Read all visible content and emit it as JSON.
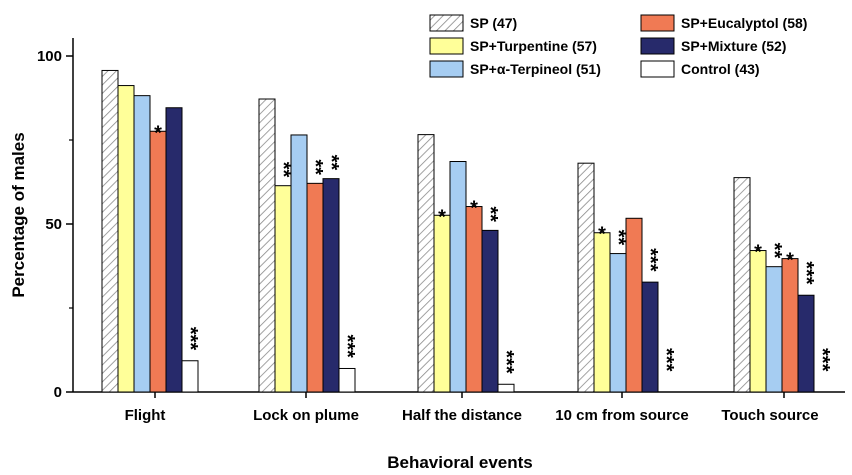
{
  "chart_data": {
    "type": "bar",
    "title": "",
    "xlabel": "Behavioral events",
    "ylabel": "Percentage of males",
    "ylim": [
      0,
      100
    ],
    "yticks": [
      "0",
      "50",
      "100"
    ],
    "legend_position": "top-right",
    "categories": [
      "Flight",
      "Lock on plume",
      "Half the distance",
      "10 cm from source",
      "Touch source"
    ],
    "series": [
      {
        "name": "SP (47)",
        "color": "#ffffff",
        "pattern": "hatch",
        "values": [
          95.7,
          87.2,
          76.6,
          68.1,
          63.8
        ],
        "sig": [
          "",
          "",
          "",
          "",
          ""
        ]
      },
      {
        "name": "SP+Turpentine (57)",
        "color": "#ffff99",
        "pattern": "solid",
        "values": [
          91.2,
          61.4,
          52.6,
          47.4,
          42.1
        ],
        "sig": [
          "",
          "**",
          "*",
          "*",
          "*"
        ]
      },
      {
        "name": "SP+α-Terpineol (51)",
        "color": "#a6cdf2",
        "pattern": "solid",
        "values": [
          88.2,
          76.5,
          68.6,
          41.2,
          37.3
        ],
        "sig": [
          "",
          "",
          "",
          "**",
          "**"
        ]
      },
      {
        "name": "SP+Eucalyptol (58)",
        "color": "#f07a54",
        "pattern": "solid",
        "values": [
          77.6,
          62.1,
          55.2,
          51.7,
          39.7
        ],
        "sig": [
          "*",
          "**",
          "*",
          "",
          "*"
        ]
      },
      {
        "name": "SP+Mixture (52)",
        "color": "#272a6b",
        "pattern": "solid",
        "values": [
          84.6,
          63.5,
          48.1,
          32.7,
          28.8
        ],
        "sig": [
          "",
          "**",
          "**",
          "***",
          "***"
        ]
      },
      {
        "name": "Control (43)",
        "color": "#ffffff",
        "pattern": "solid",
        "values": [
          9.3,
          7.0,
          2.3,
          0,
          0
        ],
        "sig": [
          "***",
          "***",
          "***",
          "***",
          "***"
        ]
      }
    ]
  }
}
